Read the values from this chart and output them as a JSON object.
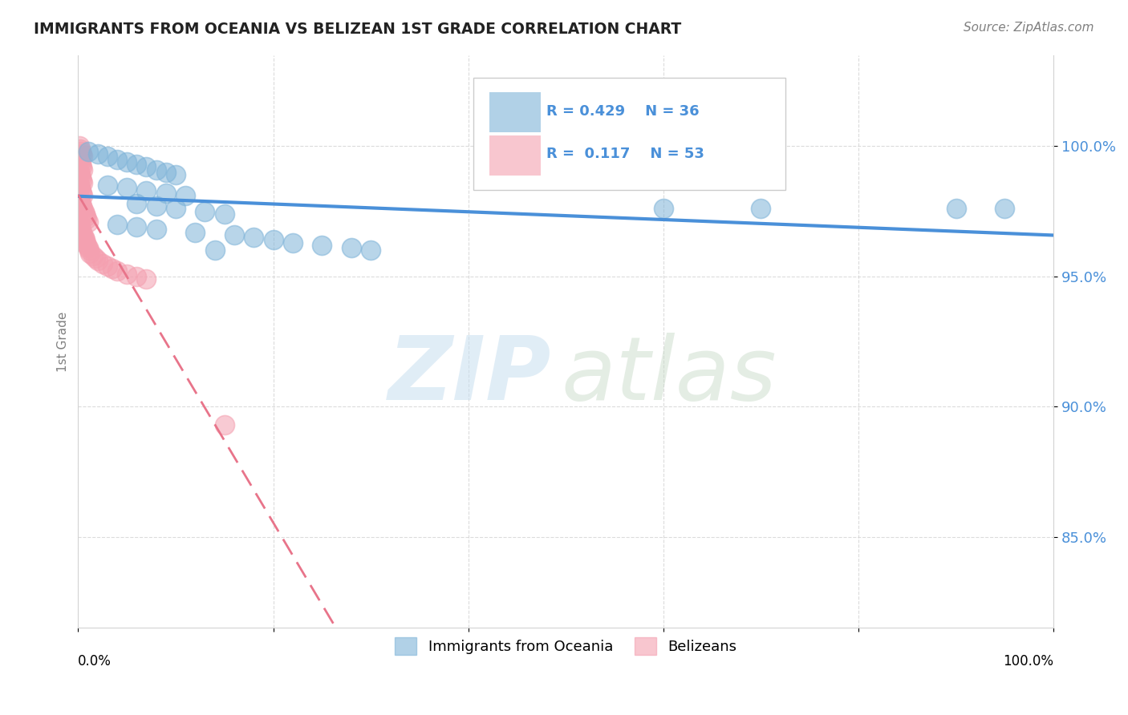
{
  "title": "IMMIGRANTS FROM OCEANIA VS BELIZEAN 1ST GRADE CORRELATION CHART",
  "source": "Source: ZipAtlas.com",
  "ylabel": "1st Grade",
  "yticks": [
    0.85,
    0.9,
    0.95,
    1.0
  ],
  "ytick_labels": [
    "85.0%",
    "90.0%",
    "95.0%",
    "100.0%"
  ],
  "xlim": [
    0.0,
    1.0
  ],
  "ylim": [
    0.815,
    1.035
  ],
  "R_blue": 0.429,
  "N_blue": 36,
  "R_pink": 0.117,
  "N_pink": 53,
  "blue_color": "#7EB3D8",
  "pink_color": "#F4A0B0",
  "blue_line_color": "#4A90D9",
  "pink_line_color": "#E8748A",
  "legend_label_blue": "Immigrants from Oceania",
  "legend_label_pink": "Belizeans",
  "blue_scatter_x": [
    0.01,
    0.02,
    0.03,
    0.04,
    0.05,
    0.06,
    0.07,
    0.08,
    0.09,
    0.1,
    0.03,
    0.05,
    0.07,
    0.09,
    0.11,
    0.06,
    0.08,
    0.1,
    0.13,
    0.15,
    0.04,
    0.06,
    0.08,
    0.12,
    0.16,
    0.18,
    0.2,
    0.22,
    0.25,
    0.28,
    0.3,
    0.6,
    0.7,
    0.9,
    0.95,
    0.14
  ],
  "blue_scatter_y": [
    0.998,
    0.997,
    0.996,
    0.995,
    0.994,
    0.993,
    0.992,
    0.991,
    0.99,
    0.989,
    0.985,
    0.984,
    0.983,
    0.982,
    0.981,
    0.978,
    0.977,
    0.976,
    0.975,
    0.974,
    0.97,
    0.969,
    0.968,
    0.967,
    0.966,
    0.965,
    0.964,
    0.963,
    0.962,
    0.961,
    0.96,
    0.976,
    0.976,
    0.976,
    0.976,
    0.96
  ],
  "pink_scatter_x": [
    0.001,
    0.002,
    0.003,
    0.004,
    0.005,
    0.001,
    0.002,
    0.003,
    0.004,
    0.005,
    0.001,
    0.002,
    0.003,
    0.004,
    0.005,
    0.001,
    0.002,
    0.003,
    0.004,
    0.005,
    0.001,
    0.002,
    0.003,
    0.004,
    0.005,
    0.006,
    0.007,
    0.008,
    0.009,
    0.01,
    0.001,
    0.002,
    0.003,
    0.004,
    0.005,
    0.006,
    0.007,
    0.008,
    0.009,
    0.01,
    0.011,
    0.012,
    0.015,
    0.018,
    0.02,
    0.025,
    0.03,
    0.035,
    0.04,
    0.05,
    0.06,
    0.07,
    0.15
  ],
  "pink_scatter_y": [
    1.0,
    0.999,
    0.998,
    0.997,
    0.996,
    0.995,
    0.994,
    0.993,
    0.992,
    0.991,
    0.99,
    0.989,
    0.988,
    0.987,
    0.986,
    0.985,
    0.984,
    0.983,
    0.982,
    0.981,
    0.98,
    0.979,
    0.978,
    0.977,
    0.976,
    0.975,
    0.974,
    0.973,
    0.972,
    0.971,
    0.97,
    0.969,
    0.968,
    0.967,
    0.966,
    0.965,
    0.964,
    0.963,
    0.962,
    0.961,
    0.96,
    0.959,
    0.958,
    0.957,
    0.956,
    0.955,
    0.954,
    0.953,
    0.952,
    0.951,
    0.95,
    0.949,
    0.893
  ]
}
